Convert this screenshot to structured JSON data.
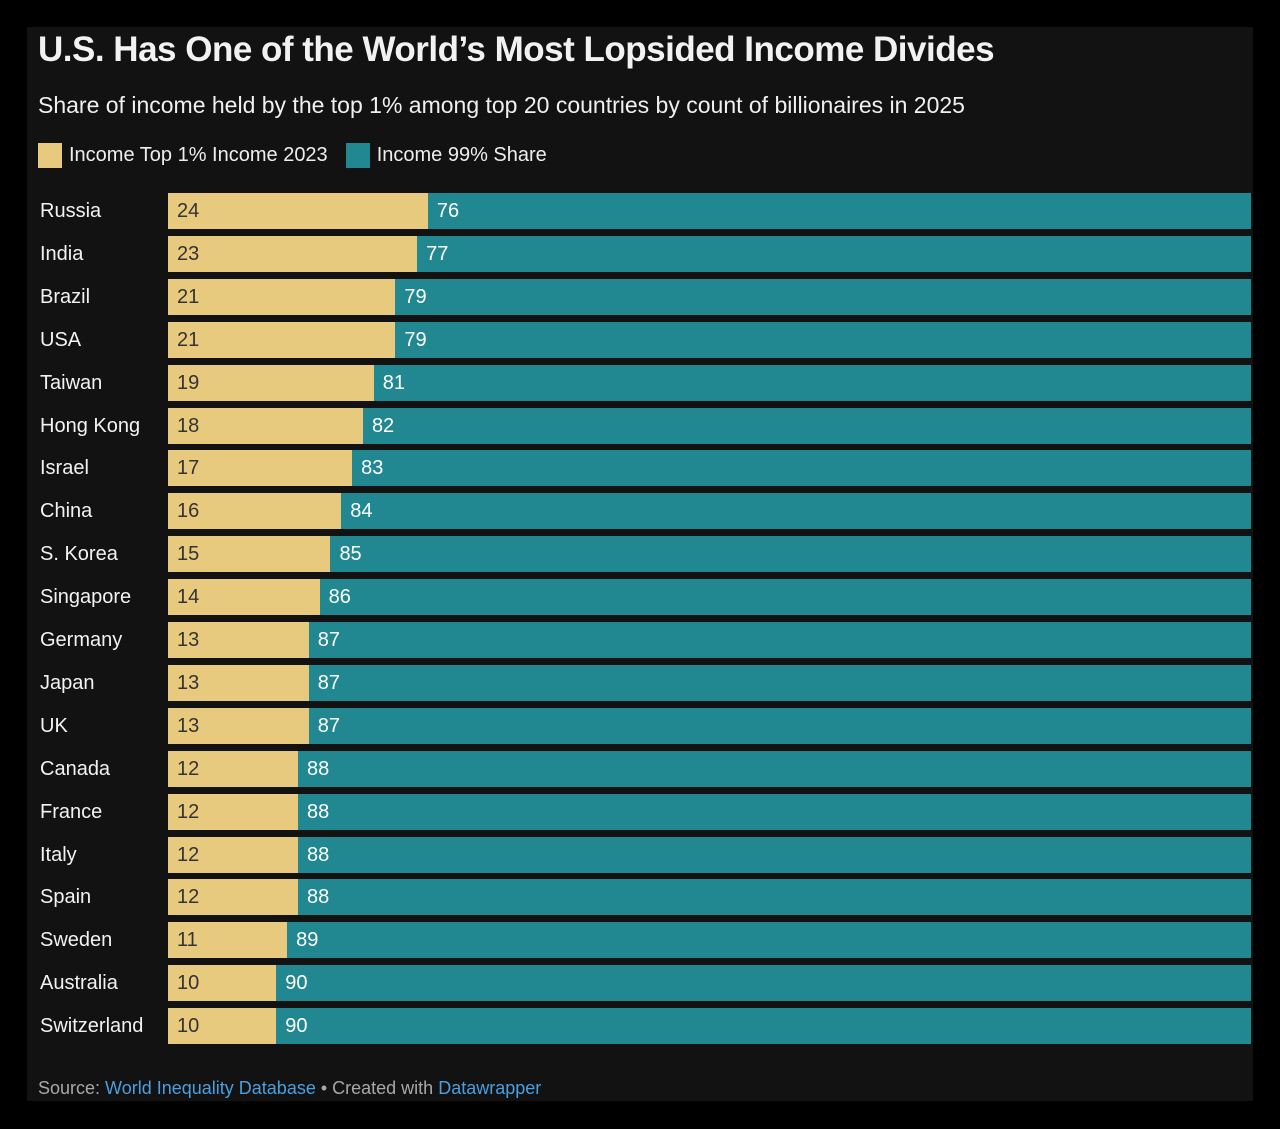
{
  "title": "U.S. Has One of the World’s Most Lopsided Income Divides",
  "subtitle": "Share of income held by the top 1% among top 20 countries by count of billionaires in 2025",
  "footer": {
    "source_label": "Source: ",
    "source_link": "World Inequality Database",
    "separator": " • Created with ",
    "tool_link": "Datawrapper"
  },
  "chart_data": {
    "type": "bar",
    "orientation": "horizontal",
    "stacked": true,
    "xlim": [
      0,
      100
    ],
    "grid": false,
    "legend_placement": "top-left",
    "categories": [
      "Russia",
      "India",
      "Brazil",
      "USA",
      "Taiwan",
      "Hong Kong",
      "Israel",
      "China",
      "S. Korea",
      "Singapore",
      "Germany",
      "Japan",
      "UK",
      "Canada",
      "France",
      "Italy",
      "Spain",
      "Sweden",
      "Australia",
      "Switzerland"
    ],
    "series": [
      {
        "name": "Income Top 1% Income 2023",
        "color": "#e8ca7f",
        "values": [
          24,
          23,
          21,
          21,
          19,
          18,
          17,
          16,
          15,
          14,
          13,
          13,
          13,
          12,
          12,
          12,
          12,
          11,
          10,
          10
        ]
      },
      {
        "name": "Income 99% Share",
        "color": "#218891",
        "values": [
          76,
          77,
          79,
          79,
          81,
          82,
          83,
          84,
          85,
          86,
          87,
          87,
          87,
          88,
          88,
          88,
          88,
          89,
          90,
          90
        ]
      }
    ]
  }
}
